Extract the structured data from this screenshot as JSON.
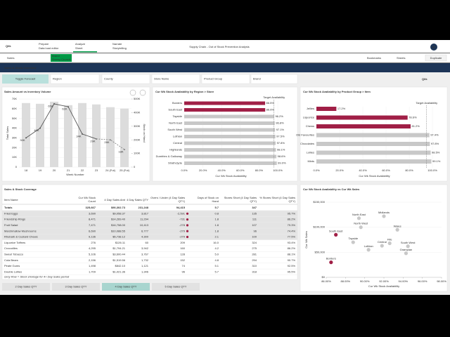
{
  "top_bar": {
    "logo": "Qlik",
    "nav": [
      {
        "label": "Prepare",
        "sub": "Data load editor"
      },
      {
        "label": "Analyze",
        "sub": "Sheet"
      },
      {
        "label": "Narrate",
        "sub": "Storytelling"
      }
    ],
    "app_title": "Supply Chain - Out of Stock Prevention Analysis",
    "avatar": "AF"
  },
  "toolbar": {
    "notes": "Notes",
    "selection": {
      "field": "Brand",
      "value": "Snowy Crunch"
    },
    "bookmarks": "Bookmarks",
    "sheets": "Sheets",
    "duplicate": "Duplicate"
  },
  "sheet": {
    "title": "Sales & Stock Overview",
    "toggle": "Toggle Forecast",
    "filters": [
      "Region",
      "County",
      "Store Name",
      "Product Group",
      "Brand"
    ],
    "logo": "Qlik"
  },
  "chart_data": [
    {
      "type": "combo",
      "title": "Sales Amount vs Inventory Volume",
      "categories": [
        "18",
        "19",
        "20",
        "21",
        "22",
        "23",
        "24 (Fut)",
        "25 (Fut)"
      ],
      "x_label": "Week Number",
      "y_label": "Total Sales",
      "y2_label": "Stock on Hand",
      "ylim": [
        0,
        70000
      ],
      "yticks": [
        0,
        {
          "value": 10000,
          "label": "10K"
        },
        {
          "value": 20000,
          "label": "20K"
        },
        {
          "value": 30000,
          "label": "30K"
        },
        {
          "value": 40000,
          "label": "40K"
        },
        {
          "value": 50000,
          "label": "50K"
        },
        {
          "value": 60000,
          "label": "60K"
        },
        {
          "value": 70000,
          "label": "70K"
        }
      ],
      "y2lim": [
        0,
        500000
      ],
      "y2ticks": [
        0,
        {
          "value": 100000,
          "label": "100K"
        },
        {
          "value": 200000,
          "label": "200K"
        },
        {
          "value": 300000,
          "label": "300K"
        },
        {
          "value": 400000,
          "label": "400K"
        },
        {
          "value": 500000,
          "label": "500K"
        }
      ],
      "series": [
        {
          "type": "bar",
          "axis": "y2",
          "color": "#dcdcdc",
          "values": [
            470000,
            465000,
            480000,
            455000,
            470000,
            460000,
            440000,
            430000
          ]
        },
        {
          "type": "line",
          "color": "#555555",
          "values": [
            30000,
            40000,
            65000,
            62000,
            34000,
            29000,
            null,
            null
          ],
          "value_labels": [
            "30K",
            "40K",
            "65K",
            "62K",
            "34K",
            "29K",
            null,
            null
          ]
        },
        {
          "type": "line",
          "dashed": true,
          "color": "#888888",
          "values": [
            null,
            null,
            null,
            null,
            null,
            29000,
            28000,
            18000
          ],
          "value_labels": [
            null,
            null,
            null,
            null,
            null,
            null,
            "28K",
            "18K"
          ]
        }
      ]
    },
    {
      "type": "hbar",
      "title": "Cur Wk Stock Availability by Region > Store",
      "categories": [
        "Borders",
        "South East",
        "Tayside",
        "North East",
        "South West",
        "Lothian",
        "Central",
        "Highlands",
        "Dumfries & Galloway",
        "Strathclyde"
      ],
      "values": [
        86.5,
        86.6,
        96.2,
        96.8,
        97.1,
        97.5,
        97.8,
        98.1,
        98.6,
        99.0
      ],
      "value_labels": [
        "86.5%",
        "86.6%",
        "96.2%",
        "96.8%",
        "97.1%",
        "97.5%",
        "97.8%",
        "98.1%",
        "98.6%",
        "99.0%"
      ],
      "color": "#c8c8c8",
      "below_target_color": "#a01f46",
      "target": {
        "label": "Target Availability",
        "value": 96
      },
      "x_label": "Cur Wk Stock Availability",
      "xlim": [
        0,
        100
      ],
      "xticks": [
        {
          "value": 0,
          "label": "0.0%"
        },
        {
          "value": 20,
          "label": "20.0%"
        },
        {
          "value": 40,
          "label": "40.0%"
        },
        {
          "value": 60,
          "label": "60.0%"
        },
        {
          "value": 80,
          "label": "80.0%"
        },
        {
          "value": 100,
          "label": "100.0%"
        }
      ]
    },
    {
      "type": "hbar",
      "title": "Cur Wk Stock Availability by Product Group > Item",
      "categories": [
        "Jellies",
        "Liquorice",
        "Chews",
        "Old Favourites",
        "Chocolates",
        "Lollies",
        "Mints"
      ],
      "values": [
        17.2,
        78.6,
        81.2,
        97.4,
        97.8,
        98.5,
        99.1
      ],
      "value_labels": [
        "17.2%",
        "78.6%",
        "81.2%",
        "97.4%",
        "97.8%",
        "98.5%",
        "99.1%"
      ],
      "color": "#c8c8c8",
      "below_target_color": "#a01f46",
      "target": {
        "label": "Target Availability",
        "value": 95
      },
      "x_label": "Cur Wk Stock Availability",
      "xlim": [
        0,
        100
      ],
      "xticks": [
        {
          "value": 0,
          "label": "0.0%"
        },
        {
          "value": 20,
          "label": "20.0%"
        },
        {
          "value": 40,
          "label": "40.0%"
        },
        {
          "value": 60,
          "label": "60.0%"
        },
        {
          "value": 80,
          "label": "80.0%"
        },
        {
          "value": 100,
          "label": "100.0%"
        }
      ]
    },
    {
      "type": "scatter",
      "title": "Cur Wk Stock Availability vs Cur Wk Sales",
      "x_label": "Cur Wk Stock Availability",
      "y_label": "Cur Wk Sales",
      "xlim": [
        86,
        98
      ],
      "xticks": [
        {
          "value": 86,
          "label": "86.00%"
        },
        {
          "value": 88,
          "label": "88.00%"
        },
        {
          "value": 90,
          "label": "90.00%"
        },
        {
          "value": 92,
          "label": "92.00%"
        },
        {
          "value": 94,
          "label": "94.00%"
        },
        {
          "value": 96,
          "label": "96.00%"
        },
        {
          "value": 98,
          "label": "98.00%"
        }
      ],
      "ylim": [
        0,
        150000
      ],
      "yticks": [
        {
          "value": 0,
          "label": "$0"
        },
        {
          "value": 50000,
          "label": "$50,000"
        },
        {
          "value": 100000,
          "label": "$100,000"
        },
        {
          "value": 150000,
          "label": "$150,000"
        }
      ],
      "labels": [
        "Borders",
        "South East",
        "North East",
        "Midlands",
        "North West",
        "Wales",
        "Tayside",
        "Fife",
        "Central",
        "South West",
        "Lothian",
        "Grampian"
      ],
      "x": [
        86.5,
        87.0,
        89.4,
        92.0,
        89.6,
        93.4,
        88.8,
        92.6,
        91.8,
        94.5,
        90.4,
        94.3
      ],
      "y": [
        30000,
        85000,
        118000,
        122000,
        100000,
        95000,
        70000,
        68000,
        63000,
        62000,
        55000,
        48000
      ],
      "colors": [
        "#a01f46",
        "#a01f46",
        "#c8c8c8",
        "#c8c8c8",
        "#c8c8c8",
        "#c8c8c8",
        "#c8c8c8",
        "#c8c8c8",
        "#c8c8c8",
        "#c8c8c8",
        "#c8c8c8",
        "#c8c8c8"
      ]
    }
  ],
  "table": {
    "title": "Sales & Stock Coverage",
    "headers": [
      [
        "Item Name"
      ],
      [
        "Cur Wk Stock",
        "Count"
      ],
      [
        "4 Day Sales Amt"
      ],
      [
        "4 Day Sales QTY"
      ],
      [
        "Overs / Under (4 Day Sales",
        "QTY)"
      ],
      [
        "Days of Stock on",
        "Hand"
      ],
      [
        "Stores Short (4 Day Sales",
        "QTY)"
      ],
      [
        "% Stores Short (4 Day Sales",
        "QTY)"
      ]
    ],
    "totals": [
      "Totals",
      "325,667",
      "$90,302.73",
      "231,248",
      "94,415",
      "5.7",
      "347",
      null
    ],
    "rows": [
      [
        "Fried Eggs",
        "3,690",
        "$9,058.37",
        "3,817",
        "-2,591",
        "0.8",
        "135",
        "95.7%"
      ],
      [
        "Friendship Rings",
        "8,471",
        "$14,269.40",
        "11,294",
        "-731",
        "1.8",
        "111",
        "86.2%"
      ],
      [
        "Fruit Salad",
        "7,471",
        "$16,758.00",
        "10,413",
        "-278",
        "1.8",
        "107",
        "79.3%"
      ],
      [
        "Marshmallow Mushrooms",
        "6,690",
        "$10,088.55",
        "6,777",
        "-279",
        "1.8",
        "96",
        "74.4%"
      ],
      [
        "Rhubarb & Custard Chews",
        "9,136",
        "$5,738.12",
        "4,300",
        "-279",
        "2.1",
        "100",
        "77.5%"
      ],
      [
        "Liquorice Toffees",
        "276",
        "$126.11",
        "60",
        "209",
        "16.0",
        "324",
        "93.4%"
      ],
      [
        "Crocodiles",
        "4,295",
        "$1,794.21",
        "3,942",
        "160",
        "4.2",
        "275",
        "86.2%"
      ],
      [
        "Sweet Tobacco",
        "5,106",
        "$3,600.44",
        "3,767",
        "128",
        "5.0",
        "281",
        "88.1%"
      ],
      [
        "Cola Bears",
        "2,156",
        "$1,519.56",
        "1,732",
        "152",
        "4.8",
        "294",
        "90.7%"
      ],
      [
        "Pirate Gums",
        "1,498",
        "$842.10",
        "1,121",
        "74",
        "5.1",
        "310",
        "92.5%"
      ],
      [
        "Double Lollies",
        "1,709",
        "$1,021.36",
        "1,346",
        "96",
        "5.7",
        "318",
        "95.5%"
      ]
    ],
    "note": "Grey Row = Stock shortage for 4+ Day Sales period"
  },
  "buttons": {
    "items": [
      "2 Day Sales QTY",
      "3 Day Sales QTY",
      "4 Day Sales QTY",
      "5 Day Sales QTY"
    ],
    "active": 2
  }
}
